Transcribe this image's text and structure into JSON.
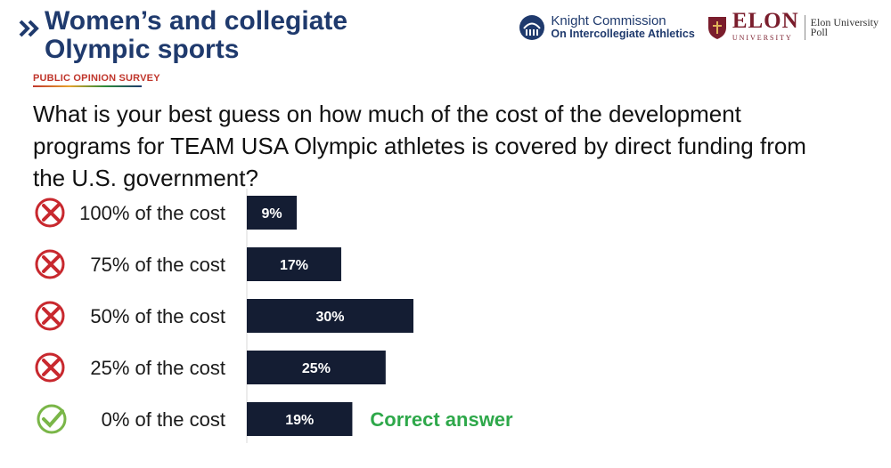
{
  "header": {
    "title_line1": "Women’s and collegiate",
    "title_line2": "Olympic sports",
    "survey_label": "PUBLIC OPINION SURVEY",
    "question": "What is your best guess on how much of the cost of the development programs for TEAM USA Olympic athletes is covered by direct funding from the U.S. government?"
  },
  "logos": {
    "knight_line1": "Knight Commission",
    "knight_line2": "On Intercollegiate Athletics",
    "elon_name": "ELON",
    "elon_sub": "UNIVERSITY",
    "elon_poll_line1": "Elon University",
    "elon_poll_line2": "Poll"
  },
  "colors": {
    "bar": "#141d33",
    "wrong": "#c8282e",
    "correct": "#7ab648",
    "correct_text": "#2ea84a",
    "title": "#1f3a6d"
  },
  "chart_data": {
    "type": "bar",
    "orientation": "horizontal",
    "categories": [
      "100% of the cost",
      "75% of the cost",
      "50% of the cost",
      "25% of the cost",
      "0% of the cost"
    ],
    "values": [
      9,
      17,
      30,
      25,
      19
    ],
    "value_labels": [
      "9%",
      "17%",
      "30%",
      "25%",
      "19%"
    ],
    "markers": [
      "wrong-icon",
      "wrong-icon",
      "wrong-icon",
      "wrong-icon",
      "check-icon"
    ],
    "annotation": "Correct answer",
    "annotation_index": 4,
    "xlim": [
      0,
      30
    ]
  }
}
